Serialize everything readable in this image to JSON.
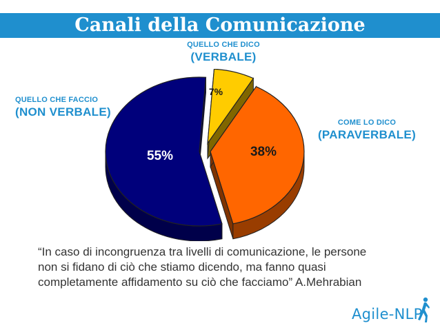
{
  "title": "Canali della Comunicazione",
  "labels": {
    "verbale": {
      "small": "QUELLO CHE DICO",
      "big": "(VERBALE)"
    },
    "nonverbale": {
      "small": "QUELLO CHE FACCIO",
      "big": "(NON VERBALE)"
    },
    "paraverbale": {
      "small": "COME LO DICO",
      "big": "(PARAVERBALE)"
    }
  },
  "quote": {
    "line1": "“In caso di incongruenza tra livelli di comunicazione, le persone",
    "line2": "non si fidano di ciò che stiamo dicendo, ma fanno quasi",
    "line3": "completamente affidamento su ciò che facciamo” A.Mehrabian"
  },
  "logo": {
    "text": "Agile-NLP"
  },
  "colors": {
    "accent": "#1f8fce",
    "navy": "#00007b",
    "orange": "#ff6600",
    "yellow": "#ffcc00"
  },
  "chart_data": {
    "type": "pie",
    "style": "3d-exploded",
    "slices": [
      {
        "label": "55%",
        "value": 55,
        "color": "#00007b"
      },
      {
        "label": "38%",
        "value": 38,
        "color": "#ff6600"
      },
      {
        "label": "7%",
        "value": 7,
        "color": "#ffcc00"
      }
    ]
  }
}
